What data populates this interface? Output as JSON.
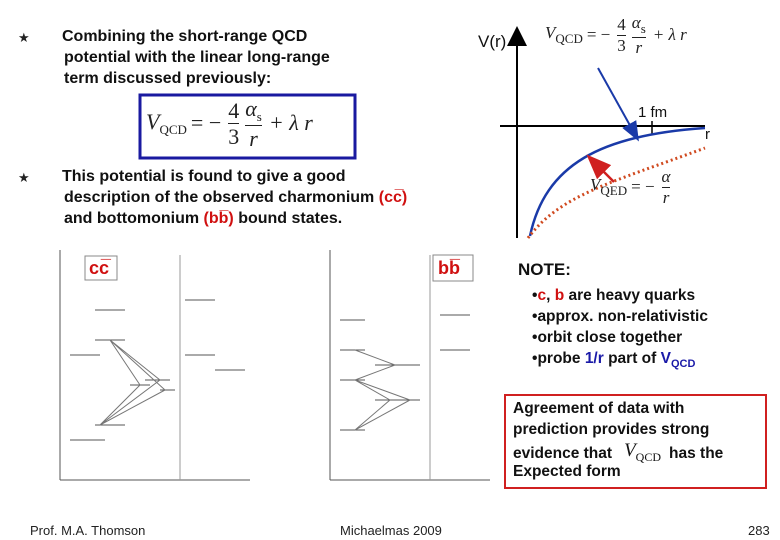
{
  "bullet_symbol": "★",
  "bullet1": [
    "Combining the short-range QCD",
    "potential with the linear long-range",
    "term discussed previously:"
  ],
  "main_formula": {
    "v": "V",
    "sub": "QCD",
    "eq": "= −",
    "n1": "4",
    "d1": "3",
    "n2": "α",
    "n2sub": "s",
    "d2": "r",
    "tail": "+ λ r"
  },
  "bullet2": {
    "line1": "This potential is found to give a good",
    "line2": "description of the observed charmonium",
    "line2_red": "(cc̅)",
    "line3": "and bottomonium",
    "line3_red": "(bb̅)",
    "line3_end": "bound states."
  },
  "plot": {
    "y_label": "V(r)",
    "x_label": "r",
    "tick_label": "1 fm",
    "qcd_formula": {
      "v": "V",
      "sub": "QCD",
      "eq": "= −",
      "n1": "4",
      "d1": "3",
      "n2": "α",
      "n2sub": "s",
      "d2": "r",
      "tail": "+ λ r"
    },
    "qed_formula": {
      "v": "V",
      "sub": "QED",
      "eq": "= −",
      "n2": "α",
      "d2": "r"
    }
  },
  "spectra": {
    "charmonium_label": "cc̅",
    "bottomonium_label": "bb̅"
  },
  "note": {
    "title": "NOTE:",
    "items": [
      {
        "bullet": "•",
        "red1": "c",
        "mid": ",",
        "red2": "b",
        "rest": "are heavy quarks"
      },
      {
        "bullet": "•",
        "text": "approx. non-relativistic"
      },
      {
        "bullet": "•",
        "text": "orbit close together"
      },
      {
        "bullet": "•",
        "pre": "probe",
        "blue": "1/r",
        "post": "part of",
        "v": "V",
        "sub": "QCD"
      }
    ]
  },
  "conclusion": {
    "lines": [
      "Agreement of data with",
      "prediction provides strong"
    ],
    "pre": "evidence that",
    "v": "V",
    "sub": "QCD",
    "post": "has the",
    "last": "Expected form"
  },
  "footer": {
    "author": "Prof. M.A. Thomson",
    "term": "Michaelmas 2009",
    "page": "283"
  }
}
